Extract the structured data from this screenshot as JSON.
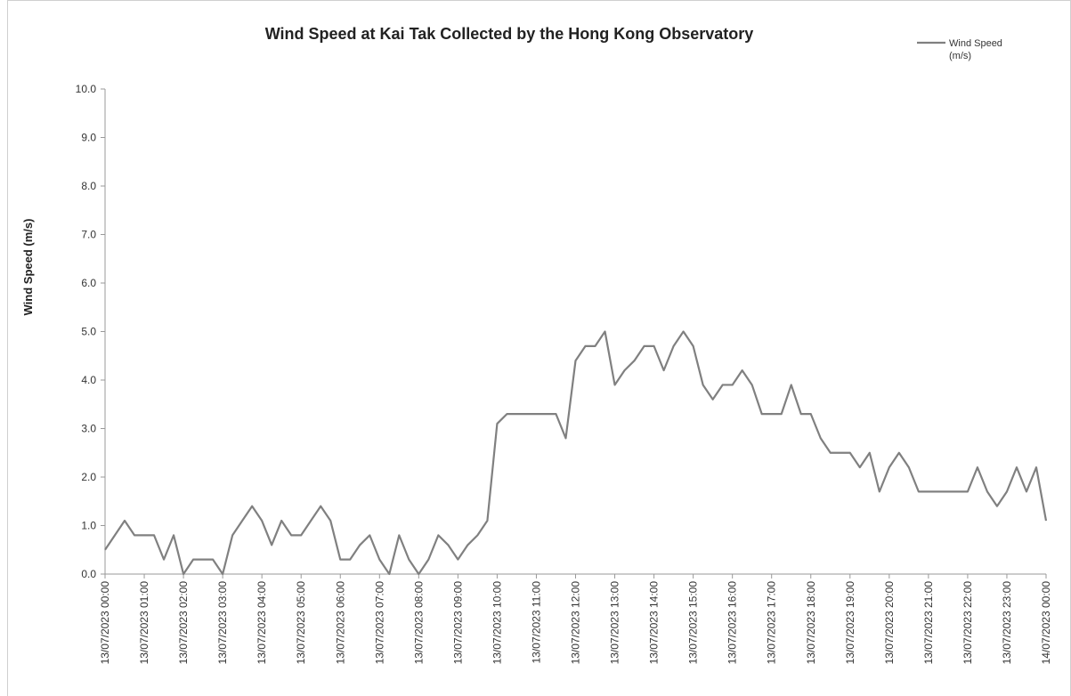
{
  "chart_data": {
    "type": "line",
    "title": "Wind Speed at Kai Tak Collected by the Hong Kong Observatory",
    "y_label": "Wind Speed (m/s)",
    "x": [
      "13/07/2023 00:00",
      "13/07/2023 00:15",
      "13/07/2023 00:30",
      "13/07/2023 00:45",
      "13/07/2023 01:00",
      "13/07/2023 01:15",
      "13/07/2023 01:30",
      "13/07/2023 01:45",
      "13/07/2023 02:00",
      "13/07/2023 02:15",
      "13/07/2023 02:30",
      "13/07/2023 02:45",
      "13/07/2023 03:00",
      "13/07/2023 03:15",
      "13/07/2023 03:30",
      "13/07/2023 03:45",
      "13/07/2023 04:00",
      "13/07/2023 04:15",
      "13/07/2023 04:30",
      "13/07/2023 04:45",
      "13/07/2023 05:00",
      "13/07/2023 05:15",
      "13/07/2023 05:30",
      "13/07/2023 05:45",
      "13/07/2023 06:00",
      "13/07/2023 06:15",
      "13/07/2023 06:30",
      "13/07/2023 06:45",
      "13/07/2023 07:00",
      "13/07/2023 07:15",
      "13/07/2023 07:30",
      "13/07/2023 07:45",
      "13/07/2023 08:00",
      "13/07/2023 08:15",
      "13/07/2023 08:30",
      "13/07/2023 08:45",
      "13/07/2023 09:00",
      "13/07/2023 09:15",
      "13/07/2023 09:30",
      "13/07/2023 09:45",
      "13/07/2023 10:00",
      "13/07/2023 10:15",
      "13/07/2023 10:30",
      "13/07/2023 10:45",
      "13/07/2023 11:00",
      "13/07/2023 11:15",
      "13/07/2023 11:30",
      "13/07/2023 11:45",
      "13/07/2023 12:00",
      "13/07/2023 12:15",
      "13/07/2023 12:30",
      "13/07/2023 12:45",
      "13/07/2023 13:00",
      "13/07/2023 13:15",
      "13/07/2023 13:30",
      "13/07/2023 13:45",
      "13/07/2023 14:00",
      "13/07/2023 14:15",
      "13/07/2023 14:30",
      "13/07/2023 14:45",
      "13/07/2023 15:00",
      "13/07/2023 15:15",
      "13/07/2023 15:30",
      "13/07/2023 15:45",
      "13/07/2023 16:00",
      "13/07/2023 16:15",
      "13/07/2023 16:30",
      "13/07/2023 16:45",
      "13/07/2023 17:00",
      "13/07/2023 17:15",
      "13/07/2023 17:30",
      "13/07/2023 17:45",
      "13/07/2023 18:00",
      "13/07/2023 18:15",
      "13/07/2023 18:30",
      "13/07/2023 18:45",
      "13/07/2023 19:00",
      "13/07/2023 19:15",
      "13/07/2023 19:30",
      "13/07/2023 19:45",
      "13/07/2023 20:00",
      "13/07/2023 20:15",
      "13/07/2023 20:30",
      "13/07/2023 20:45",
      "13/07/2023 21:00",
      "13/07/2023 21:15",
      "13/07/2023 21:30",
      "13/07/2023 21:45",
      "13/07/2023 22:00",
      "13/07/2023 22:15",
      "13/07/2023 22:30",
      "13/07/2023 22:45",
      "13/07/2023 23:00",
      "13/07/2023 23:15",
      "13/07/2023 23:30",
      "13/07/2023 23:45",
      "14/07/2023 00:00"
    ],
    "series": [
      {
        "name": "Wind Speed (m/s)",
        "color": "#808080",
        "values": [
          0.5,
          0.8,
          1.1,
          0.8,
          0.8,
          0.8,
          0.3,
          0.8,
          0.0,
          0.3,
          0.3,
          0.3,
          0.0,
          0.8,
          1.1,
          1.4,
          1.1,
          0.6,
          1.1,
          0.8,
          0.8,
          1.1,
          1.4,
          1.1,
          0.3,
          0.3,
          0.6,
          0.8,
          0.3,
          0.0,
          0.8,
          0.3,
          0.0,
          0.3,
          0.8,
          0.6,
          0.3,
          0.6,
          0.8,
          1.1,
          3.1,
          3.3,
          3.3,
          3.3,
          3.3,
          3.3,
          3.3,
          2.8,
          4.4,
          4.7,
          4.7,
          5.0,
          3.9,
          4.2,
          4.4,
          4.7,
          4.7,
          4.2,
          4.7,
          5.0,
          4.7,
          3.9,
          3.6,
          3.9,
          3.9,
          4.2,
          3.9,
          3.3,
          3.3,
          3.3,
          3.9,
          3.3,
          3.3,
          2.8,
          2.5,
          2.5,
          2.5,
          2.2,
          2.5,
          1.7,
          2.2,
          2.5,
          2.2,
          1.7,
          1.7,
          1.7,
          1.7,
          1.7,
          1.7,
          2.2,
          1.7,
          1.4,
          1.7,
          2.2,
          1.7,
          2.2,
          1.1
        ]
      }
    ],
    "xlim": [
      "13/07/2023 00:00",
      "14/07/2023 00:00"
    ],
    "xticks": [
      "13/07/2023 00:00",
      "13/07/2023 01:00",
      "13/07/2023 02:00",
      "13/07/2023 03:00",
      "13/07/2023 04:00",
      "13/07/2023 05:00",
      "13/07/2023 06:00",
      "13/07/2023 07:00",
      "13/07/2023 08:00",
      "13/07/2023 09:00",
      "13/07/2023 10:00",
      "13/07/2023 11:00",
      "13/07/2023 12:00",
      "13/07/2023 13:00",
      "13/07/2023 14:00",
      "13/07/2023 15:00",
      "13/07/2023 16:00",
      "13/07/2023 17:00",
      "13/07/2023 18:00",
      "13/07/2023 19:00",
      "13/07/2023 20:00",
      "13/07/2023 21:00",
      "13/07/2023 22:00",
      "13/07/2023 23:00",
      "14/07/2023 00:00"
    ],
    "ylim": [
      0,
      10
    ],
    "yticks": [
      {
        "value": 0,
        "label": "0.0"
      },
      {
        "value": 1,
        "label": "1.0"
      },
      {
        "value": 2,
        "label": "2.0"
      },
      {
        "value": 3,
        "label": "3.0"
      },
      {
        "value": 4,
        "label": "4.0"
      },
      {
        "value": 5,
        "label": "5.0"
      },
      {
        "value": 6,
        "label": "6.0"
      },
      {
        "value": 7,
        "label": "7.0"
      },
      {
        "value": 8,
        "label": "8.0"
      },
      {
        "value": 9,
        "label": "9.0"
      },
      {
        "value": 10,
        "label": "10.0"
      }
    ],
    "legend": "top-right"
  }
}
